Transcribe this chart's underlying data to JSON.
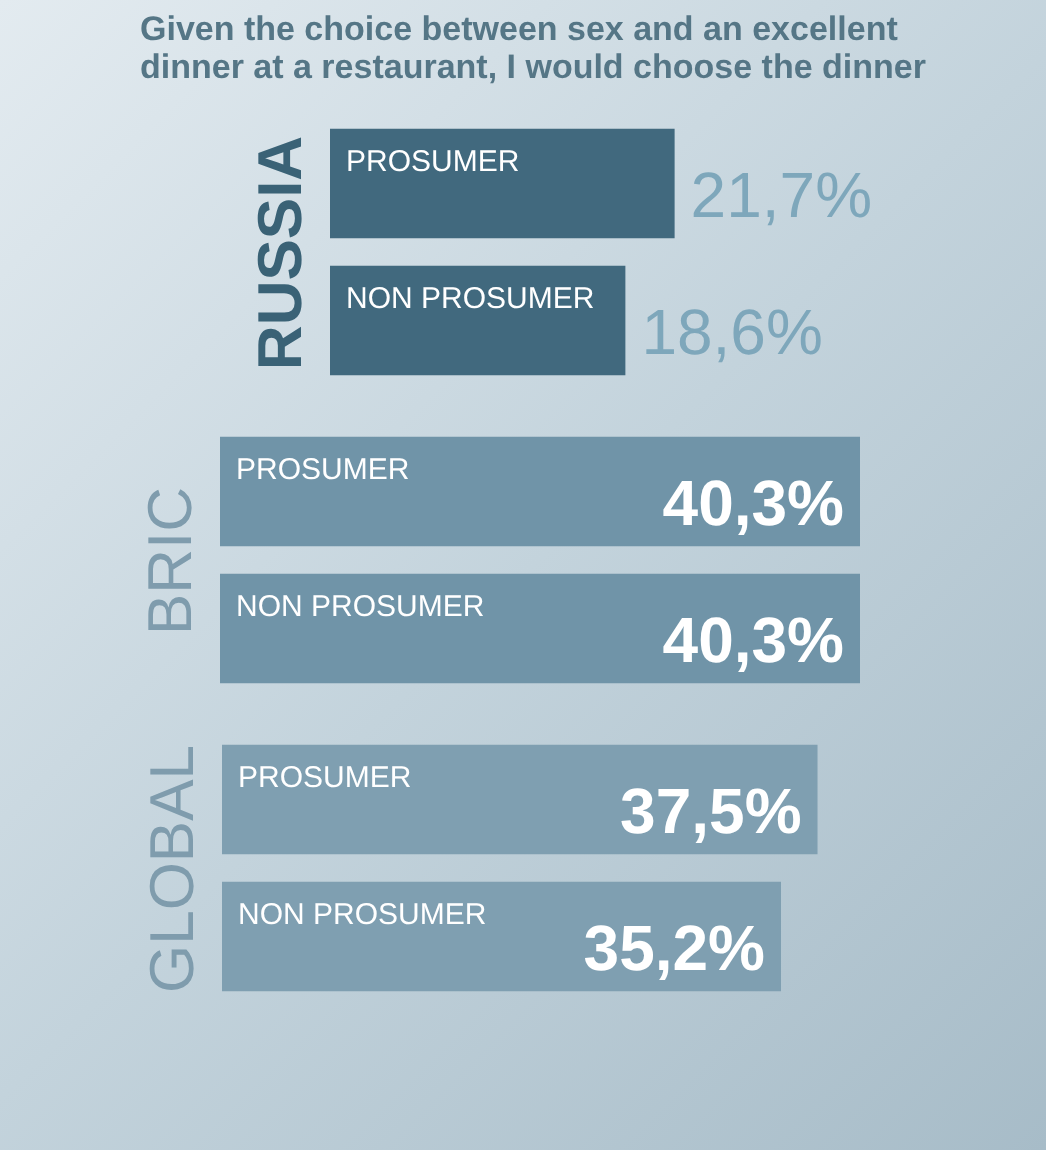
{
  "chart_data": [
    {
      "type": "bar",
      "orientation": "horizontal",
      "title": "Given the choice between sex and an excellent dinner at a restaurant, I would choose the dinner",
      "ylabel": "RUSSIA",
      "categories": [
        "PROSUMER",
        "NON PROSUMER"
      ],
      "values": [
        21.7,
        18.6
      ],
      "colors": [
        "#41697e",
        "#41697e"
      ],
      "value_labels": [
        "21,7%",
        "18,6%"
      ]
    },
    {
      "type": "bar",
      "orientation": "horizontal",
      "ylabel": "BRIC",
      "categories": [
        "PROSUMER",
        "NON PROSUMER"
      ],
      "values": [
        40.3,
        40.3
      ],
      "colors": [
        "#7094a8",
        "#7094a8"
      ],
      "value_labels": [
        "40,3%",
        "40,3%"
      ]
    },
    {
      "type": "bar",
      "orientation": "horizontal",
      "ylabel": "GLOBAL",
      "categories": [
        "PROSUMER",
        "NON PROSUMER"
      ],
      "values": [
        37.5,
        35.2
      ],
      "colors": [
        "#7f9fb1",
        "#7f9fb1"
      ],
      "value_labels": [
        "37,5%",
        "35,2%"
      ]
    }
  ]
}
